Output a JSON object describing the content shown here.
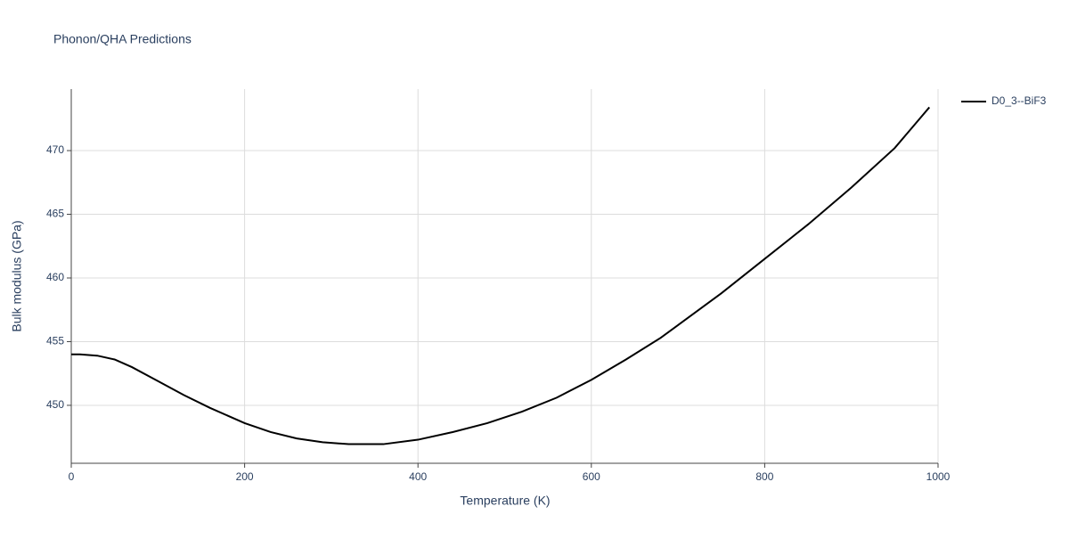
{
  "chart_data": {
    "type": "line",
    "title": "Phonon/QHA Predictions",
    "x_label": "Temperature (K)",
    "y_label": "Bulk modulus (GPa)",
    "x": [
      0,
      10,
      30,
      50,
      70,
      100,
      130,
      160,
      200,
      230,
      260,
      290,
      320,
      360,
      400,
      440,
      480,
      520,
      560,
      600,
      640,
      680,
      700,
      750,
      800,
      850,
      900,
      950,
      990
    ],
    "series": [
      {
        "name": "D0_3--BiF3",
        "color": "#000000",
        "values": [
          454.0,
          454.0,
          453.9,
          453.6,
          453.0,
          451.9,
          450.8,
          449.8,
          448.6,
          447.9,
          447.4,
          447.1,
          446.95,
          446.95,
          447.3,
          447.9,
          448.6,
          449.5,
          450.6,
          452.0,
          453.6,
          455.3,
          456.3,
          458.8,
          461.5,
          464.2,
          467.1,
          470.2,
          473.4
        ]
      }
    ],
    "xlim": [
      0,
      1000
    ],
    "xticks": [
      0,
      200,
      400,
      600,
      800,
      1000
    ],
    "ylim": [
      445.45,
      474.83
    ],
    "yticks": [
      450,
      455,
      460,
      465,
      470
    ],
    "grid": true,
    "legend": "right"
  }
}
